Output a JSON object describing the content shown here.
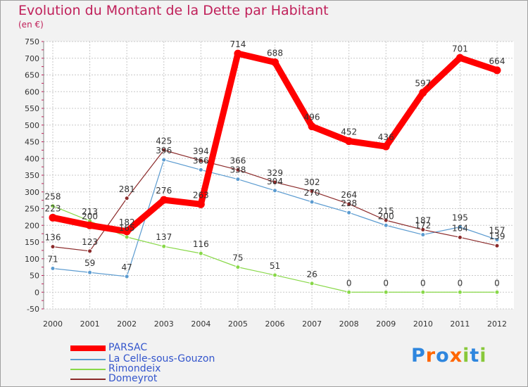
{
  "chart_data": {
    "type": "line",
    "title": "Evolution du Montant de la Dette par Habitant",
    "subtitle": "(en €)",
    "xlabel": "",
    "ylabel": "",
    "ylim": [
      -50,
      750
    ],
    "yticks": [
      -50,
      0,
      50,
      100,
      150,
      200,
      250,
      300,
      350,
      400,
      450,
      500,
      550,
      600,
      650,
      700,
      750
    ],
    "categories": [
      "2000",
      "2001",
      "2002",
      "2003",
      "2004",
      "2005",
      "2006",
      "2007",
      "2008",
      "2009",
      "2010",
      "2011",
      "2012"
    ],
    "series": [
      {
        "name": "PARSAC",
        "color": "#ff0000",
        "values": [
          223,
          200,
          182,
          276,
          263,
          714,
          688,
          496,
          452,
          436,
          597,
          701,
          664
        ]
      },
      {
        "name": "La Celle-sous-Gouzon",
        "color": "#5b9bd0",
        "values": [
          71,
          59,
          47,
          396,
          366,
          338,
          304,
          270,
          238,
          200,
          172,
          195,
          157
        ]
      },
      {
        "name": "Rimondeix",
        "color": "#88d848",
        "values": [
          258,
          213,
          165,
          137,
          116,
          75,
          51,
          26,
          0,
          0,
          0,
          0,
          0
        ]
      },
      {
        "name": "Domeyrot",
        "color": "#8b2a2a",
        "values": [
          136,
          123,
          281,
          425,
          394,
          366,
          329,
          302,
          264,
          215,
          187,
          164,
          139
        ]
      }
    ],
    "legend_position": "bottom-left",
    "grid": true
  },
  "logo": {
    "letters": [
      "P",
      "r",
      "o",
      "x",
      "i",
      "t",
      "i"
    ],
    "colors": [
      "#2e86de",
      "#ff6600",
      "#2e86de",
      "#ff6600",
      "#88c83a",
      "#2e86de",
      "#88c83a"
    ]
  }
}
